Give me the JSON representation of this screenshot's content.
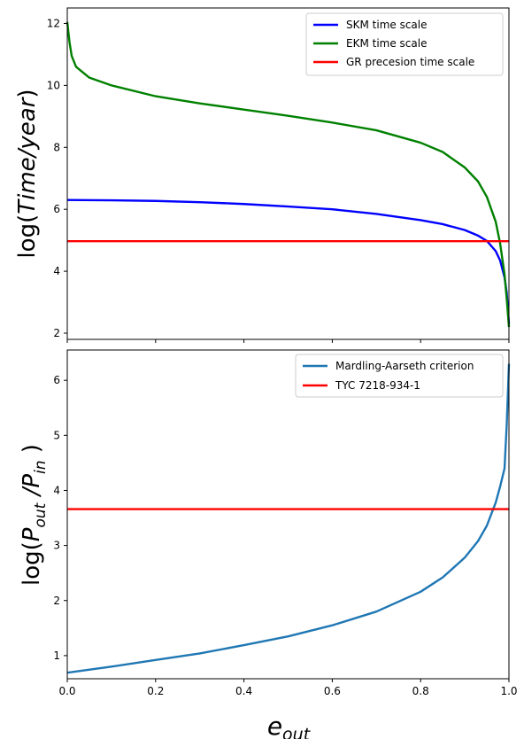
{
  "chart_data": [
    {
      "type": "line",
      "title": "",
      "xlabel": "",
      "ylabel": "log(Time/year)",
      "xlim": [
        0.0,
        1.0
      ],
      "ylim": [
        1.8,
        12.5
      ],
      "yticks": [
        "2",
        "4",
        "6",
        "8",
        "10",
        "12"
      ],
      "x_tick_labels_shown": false,
      "grid": false,
      "legend_position": "upper right",
      "series": [
        {
          "name": "SKM time scale",
          "color": "#0000ff",
          "x": [
            0.0,
            0.1,
            0.2,
            0.3,
            0.4,
            0.5,
            0.6,
            0.7,
            0.8,
            0.85,
            0.9,
            0.93,
            0.95,
            0.97,
            0.98,
            0.99,
            0.995,
            1.0
          ],
          "y": [
            6.3,
            6.29,
            6.27,
            6.23,
            6.17,
            6.09,
            6.0,
            5.85,
            5.65,
            5.52,
            5.33,
            5.15,
            4.98,
            4.65,
            4.35,
            3.8,
            3.3,
            2.3
          ]
        },
        {
          "name": "EKM time scale",
          "color": "#008000",
          "x": [
            0.0,
            0.005,
            0.01,
            0.02,
            0.05,
            0.1,
            0.2,
            0.3,
            0.4,
            0.5,
            0.6,
            0.7,
            0.8,
            0.85,
            0.9,
            0.93,
            0.95,
            0.97,
            0.98,
            0.99,
            0.995,
            1.0
          ],
          "y": [
            12.05,
            11.4,
            10.95,
            10.6,
            10.25,
            10.0,
            9.65,
            9.42,
            9.22,
            9.02,
            8.8,
            8.55,
            8.15,
            7.85,
            7.35,
            6.9,
            6.4,
            5.6,
            4.9,
            3.9,
            3.1,
            2.2
          ]
        },
        {
          "name": "GR precesion time scale",
          "color": "#ff0000",
          "x": [
            0.0,
            1.0
          ],
          "y": [
            4.97,
            4.97
          ]
        }
      ]
    },
    {
      "type": "line",
      "title": "",
      "xlabel": "e_out",
      "ylabel": "log(P_out /P_in )",
      "xlim": [
        0.0,
        1.0
      ],
      "ylim": [
        0.58,
        6.55
      ],
      "xticks": [
        "0.0",
        "0.2",
        "0.4",
        "0.6",
        "0.8",
        "1.0"
      ],
      "yticks": [
        "1",
        "2",
        "3",
        "4",
        "5",
        "6"
      ],
      "grid": false,
      "legend_position": "upper right",
      "series": [
        {
          "name": "Mardling-Aarseth criterion",
          "color": "#1f77b4",
          "x": [
            0.0,
            0.1,
            0.2,
            0.3,
            0.4,
            0.5,
            0.6,
            0.7,
            0.8,
            0.85,
            0.9,
            0.93,
            0.95,
            0.97,
            0.98,
            0.99,
            0.995,
            1.0
          ],
          "y": [
            0.69,
            0.8,
            0.92,
            1.04,
            1.19,
            1.35,
            1.55,
            1.8,
            2.16,
            2.42,
            2.78,
            3.08,
            3.36,
            3.78,
            4.07,
            4.4,
            5.2,
            6.3
          ]
        },
        {
          "name": "TYC 7218-934-1",
          "color": "#ff0000",
          "x": [
            0.0,
            1.0
          ],
          "y": [
            3.66,
            3.66
          ]
        }
      ]
    }
  ]
}
